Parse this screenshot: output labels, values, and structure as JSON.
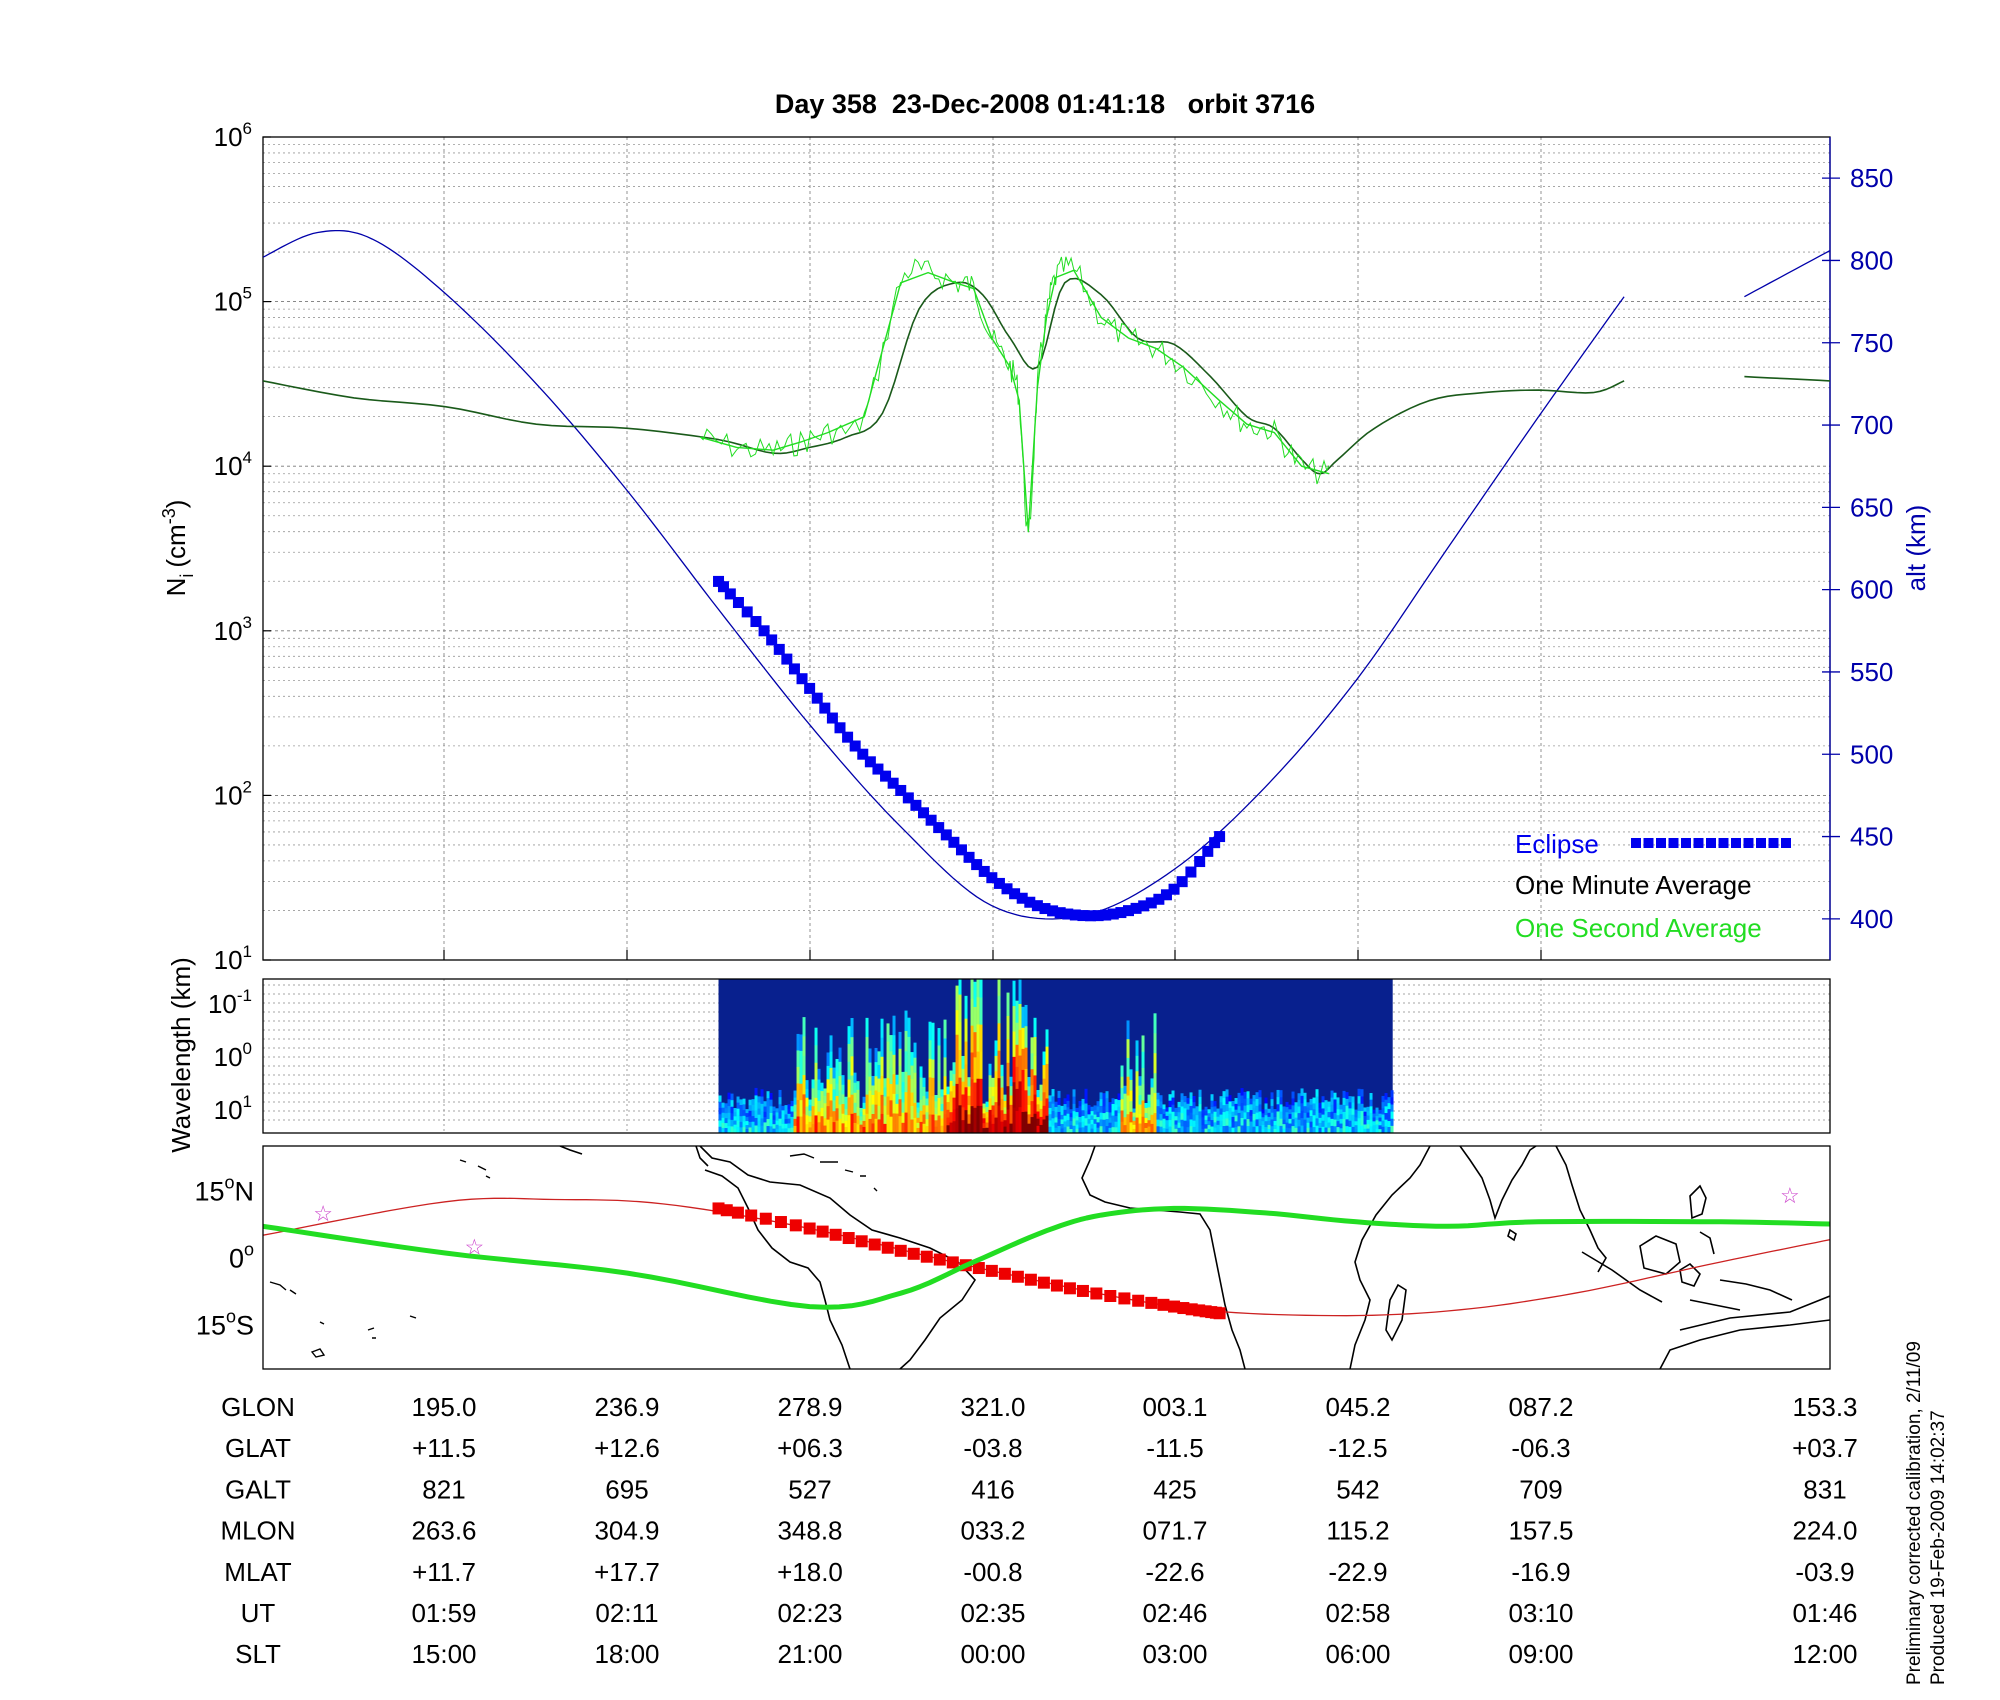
{
  "title": "Day 358  23-Dec-2008 01:41:18   orbit 3716",
  "colors": {
    "altitude": "#0000aa",
    "one_second": "#22dd22",
    "one_minute": "#1a5a1a",
    "eclipse": "#0000ee",
    "eclipse_track": "#ee0000",
    "orbit_track": "#cc2222",
    "ground_track": "#22dd22",
    "stars": "#cc44cc"
  },
  "chart_data": [
    {
      "type": "line",
      "name": "ion-density-panel",
      "ylabel_base": "N",
      "ylabel_sub": "i",
      "ylabel_unit": "(cm",
      "ylabel_exp": "-3",
      "ylabel_close": ")",
      "y_scale": "log",
      "ylim": [
        10,
        1000000
      ],
      "y_ticks": [
        {
          "base": "10",
          "exp": "1",
          "value": 10
        },
        {
          "base": "10",
          "exp": "2",
          "value": 100
        },
        {
          "base": "10",
          "exp": "3",
          "value": 1000
        },
        {
          "base": "10",
          "exp": "4",
          "value": 10000
        },
        {
          "base": "10",
          "exp": "5",
          "value": 100000
        },
        {
          "base": "10",
          "exp": "6",
          "value": 1000000
        }
      ],
      "y2label": "alt (km)",
      "y2lim": [
        375,
        875
      ],
      "y2_ticks": [
        "400",
        "450",
        "500",
        "550",
        "600",
        "650",
        "700",
        "750",
        "800",
        "850"
      ],
      "grid": true,
      "xlim": [
        0,
        8.6
      ],
      "series": [
        {
          "name": "Altitude",
          "axis": "right",
          "x": [
            0,
            0.3,
            0.6,
            1.0,
            1.5,
            2.0,
            2.5,
            3.0,
            3.5,
            4.0,
            4.5,
            5.0,
            5.5,
            6.0,
            6.5,
            7.0,
            7.47
          ],
          "y": [
            802,
            817,
            813,
            780,
            725,
            660,
            588,
            518,
            456,
            408,
            402,
            430,
            480,
            545,
            625,
            705,
            778
          ]
        },
        {
          "name": "Altitude (next orbit)",
          "axis": "right",
          "x": [
            8.13,
            8.6
          ],
          "y": [
            778,
            806
          ]
        },
        {
          "name": "One Minute Average",
          "axis": "left",
          "x": [
            0,
            0.5,
            1.0,
            1.5,
            2.0,
            2.5,
            2.8,
            3.0,
            3.2,
            3.4,
            3.6,
            3.8,
            3.95,
            4.1,
            4.25,
            4.4,
            4.6,
            4.8,
            5.0,
            5.2,
            5.4,
            5.55,
            5.7,
            5.8,
            5.9,
            6.1,
            6.4,
            6.7,
            7.0,
            7.3,
            7.47
          ],
          "y": [
            33000,
            26000,
            23000,
            18000,
            17000,
            14500,
            12000,
            13000,
            15000,
            21000,
            90000,
            130000,
            110000,
            60000,
            40000,
            130000,
            110000,
            60000,
            55000,
            35000,
            20000,
            17000,
            11000,
            9000,
            11000,
            17000,
            25000,
            28000,
            29000,
            28000,
            33000
          ]
        },
        {
          "name": "One Minute Average (next orbit)",
          "axis": "left",
          "x": [
            8.13,
            8.6
          ],
          "y": [
            35000,
            33000
          ]
        },
        {
          "name": "One Second Average",
          "axis": "left",
          "x": [
            2.4,
            2.6,
            2.8,
            2.95,
            3.1,
            3.3,
            3.5,
            3.65,
            3.8,
            3.9,
            4.0,
            4.1,
            4.15,
            4.2,
            4.25,
            4.3,
            4.35,
            4.45,
            4.6,
            4.75,
            4.9,
            5.05,
            5.25,
            5.4,
            5.55,
            5.7,
            5.85
          ],
          "y": [
            15000,
            13000,
            12500,
            14000,
            16000,
            20000,
            130000,
            150000,
            130000,
            120000,
            60000,
            40000,
            25000,
            4000,
            30000,
            80000,
            140000,
            155000,
            80000,
            60000,
            52000,
            40000,
            25000,
            18000,
            16000,
            10000,
            9000
          ]
        },
        {
          "name": "Eclipse",
          "axis": "right",
          "x": [
            2.5,
            2.75,
            3.0,
            3.25,
            3.5,
            3.75,
            4.0,
            4.25,
            4.5,
            4.75,
            5.0,
            5.25
          ],
          "y": [
            605,
            575,
            540,
            505,
            478,
            451,
            425,
            408,
            402,
            405,
            418,
            450
          ]
        }
      ],
      "legend": {
        "position": "bottom-right",
        "entries": [
          "Eclipse",
          "One Minute Average",
          "One Second Average"
        ]
      }
    },
    {
      "type": "heatmap",
      "name": "wavelength-spectrogram",
      "ylabel": "Wavelength (km)",
      "y_scale": "log",
      "y_ticks": [
        {
          "base": "10",
          "exp": "-1"
        },
        {
          "base": "10",
          "exp": "0"
        },
        {
          "base": "10",
          "exp": "1"
        }
      ],
      "x_extent": [
        2.5,
        6.2
      ],
      "colormap": "jet",
      "active_ranges": [
        [
          2.9,
          4.3
        ],
        [
          4.7,
          4.9
        ]
      ]
    },
    {
      "type": "line",
      "name": "ground-track-map",
      "y_ticks": [
        {
          "num": "15",
          "deg": "o",
          "hem": "N",
          "value": 15
        },
        {
          "num": "0",
          "deg": "o",
          "hem": "",
          "value": 0
        },
        {
          "num": "15",
          "deg": "o",
          "hem": "S",
          "value": -15
        }
      ],
      "ylim": [
        -25,
        25
      ],
      "series": [
        {
          "name": "Orbit track",
          "x": [
            0,
            1.0,
            1.6,
            2.2,
            3.0,
            4.0,
            5.0,
            5.8,
            6.5,
            7.2,
            8.0,
            8.6
          ],
          "y": [
            5,
            12.5,
            13,
            12,
            6.5,
            -3,
            -11,
            -13,
            -12,
            -8,
            -1,
            4
          ]
        },
        {
          "name": "Eclipse track",
          "x": [
            2.5,
            3.0,
            3.5,
            4.0,
            4.5,
            5.0,
            5.25
          ],
          "y": [
            11,
            6.5,
            1.5,
            -3,
            -7.5,
            -11,
            -12.5
          ]
        },
        {
          "name": "Magnetic equator",
          "x": [
            0,
            1.0,
            2.0,
            3.0,
            3.5,
            3.9,
            4.3,
            4.6,
            5.0,
            5.5,
            6.0,
            6.5,
            7.0,
            8.0,
            8.6
          ],
          "y": [
            7,
            1,
            -3.5,
            -11,
            -8,
            -1,
            6,
            9.5,
            11,
            10,
            8,
            7,
            8,
            8,
            7.5
          ]
        }
      ],
      "stars": [
        {
          "x": 0.33,
          "y": 10
        },
        {
          "x": 1.16,
          "y": 2.5
        },
        {
          "x": 8.38,
          "y": 14
        }
      ]
    }
  ],
  "table": [
    {
      "label": "GLON",
      "values": [
        "195.0",
        "236.9",
        "278.9",
        "321.0",
        "003.1",
        "045.2",
        "087.2",
        "153.3"
      ]
    },
    {
      "label": "GLAT",
      "values": [
        "+11.5",
        "+12.6",
        "+06.3",
        "-03.8",
        "-11.5",
        "-12.5",
        "-06.3",
        "+03.7"
      ]
    },
    {
      "label": "GALT",
      "values": [
        "821",
        "695",
        "527",
        "416",
        "425",
        "542",
        "709",
        "831"
      ]
    },
    {
      "label": "MLON",
      "values": [
        "263.6",
        "304.9",
        "348.8",
        "033.2",
        "071.7",
        "115.2",
        "157.5",
        "224.0"
      ]
    },
    {
      "label": "MLAT",
      "values": [
        "+11.7",
        "+17.7",
        "+18.0",
        "-00.8",
        "-22.6",
        "-22.9",
        "-16.9",
        "-03.9"
      ]
    },
    {
      "label": "UT",
      "values": [
        "01:59",
        "02:11",
        "02:23",
        "02:35",
        "02:46",
        "02:58",
        "03:10",
        "01:46"
      ]
    },
    {
      "label": "SLT",
      "values": [
        "15:00",
        "18:00",
        "21:00",
        "00:00",
        "03:00",
        "06:00",
        "09:00",
        "12:00"
      ]
    }
  ],
  "footer": {
    "line1": "Preliminary corrected calibration, 2/11/09",
    "line2": "Produced 19-Feb-2009 14:02:37"
  }
}
